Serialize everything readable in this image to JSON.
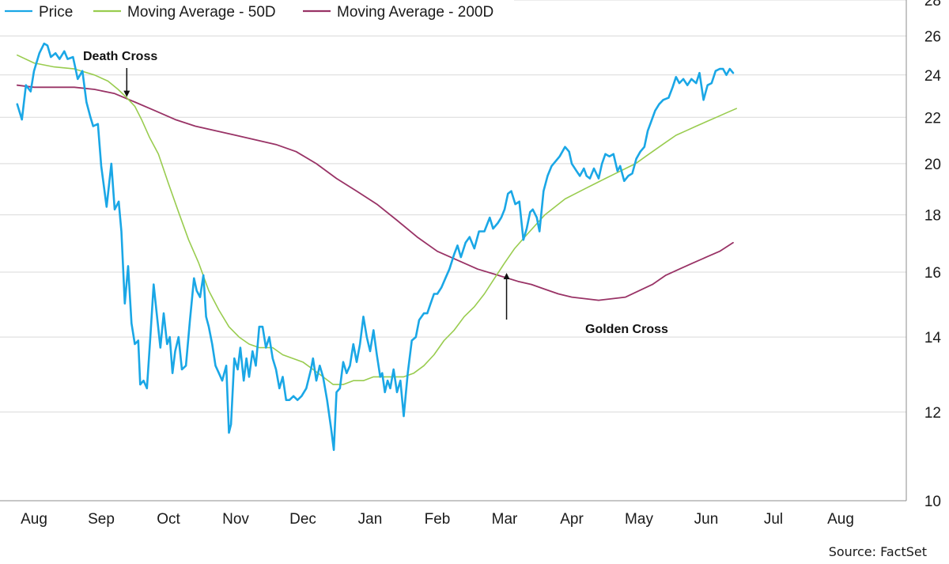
{
  "chart_data": {
    "type": "line",
    "title": "",
    "xlabel": "",
    "ylabel": "",
    "yscale": "log",
    "ylim": [
      10,
      28
    ],
    "yticks": [
      10,
      12,
      14,
      16,
      18,
      20,
      22,
      24,
      26,
      28
    ],
    "grid": "horizontal",
    "legend_position": "top-left",
    "colors": {
      "Price": "#1aa7e6",
      "Moving Average - 50D": "#99cc4f",
      "Moving Average - 200D": "#993366"
    },
    "month_labels": [
      "Aug",
      "Sep",
      "Oct",
      "Nov",
      "Dec",
      "Jan",
      "Feb",
      "Mar",
      "Apr",
      "May",
      "Jun",
      "Jul",
      "Aug"
    ],
    "x_unit": "months from the first tick label (0 = first Aug)",
    "series": [
      {
        "name": "Price",
        "color": "#1aa7e6",
        "points": [
          [
            -0.25,
            22.6
          ],
          [
            -0.18,
            21.9
          ],
          [
            -0.12,
            23.5
          ],
          [
            -0.05,
            23.2
          ],
          [
            0.0,
            24.2
          ],
          [
            0.08,
            25.1
          ],
          [
            0.15,
            25.6
          ],
          [
            0.2,
            25.5
          ],
          [
            0.25,
            24.9
          ],
          [
            0.32,
            25.1
          ],
          [
            0.38,
            24.8
          ],
          [
            0.45,
            25.2
          ],
          [
            0.5,
            24.8
          ],
          [
            0.58,
            24.9
          ],
          [
            0.65,
            23.8
          ],
          [
            0.72,
            24.2
          ],
          [
            0.78,
            22.7
          ],
          [
            0.84,
            22.0
          ],
          [
            0.88,
            21.6
          ],
          [
            0.95,
            21.7
          ],
          [
            1.0,
            19.9
          ],
          [
            1.08,
            18.3
          ],
          [
            1.15,
            20.0
          ],
          [
            1.2,
            18.2
          ],
          [
            1.26,
            18.5
          ],
          [
            1.3,
            17.4
          ],
          [
            1.35,
            15.0
          ],
          [
            1.4,
            16.2
          ],
          [
            1.45,
            14.4
          ],
          [
            1.5,
            13.8
          ],
          [
            1.55,
            13.9
          ],
          [
            1.58,
            12.7
          ],
          [
            1.63,
            12.8
          ],
          [
            1.68,
            12.6
          ],
          [
            1.73,
            14.0
          ],
          [
            1.78,
            15.6
          ],
          [
            1.82,
            14.8
          ],
          [
            1.88,
            13.7
          ],
          [
            1.93,
            14.7
          ],
          [
            1.98,
            13.8
          ],
          [
            2.02,
            14.0
          ],
          [
            2.06,
            13.0
          ],
          [
            2.1,
            13.6
          ],
          [
            2.15,
            14.0
          ],
          [
            2.2,
            13.1
          ],
          [
            2.26,
            13.2
          ],
          [
            2.32,
            14.5
          ],
          [
            2.38,
            15.8
          ],
          [
            2.42,
            15.4
          ],
          [
            2.47,
            15.2
          ],
          [
            2.52,
            15.9
          ],
          [
            2.56,
            14.6
          ],
          [
            2.6,
            14.3
          ],
          [
            2.65,
            13.8
          ],
          [
            2.7,
            13.2
          ],
          [
            2.75,
            13.0
          ],
          [
            2.8,
            12.8
          ],
          [
            2.86,
            13.2
          ],
          [
            2.9,
            11.5
          ],
          [
            2.93,
            11.7
          ],
          [
            2.98,
            13.4
          ],
          [
            3.03,
            13.1
          ],
          [
            3.07,
            13.7
          ],
          [
            3.12,
            12.8
          ],
          [
            3.16,
            13.4
          ],
          [
            3.2,
            12.9
          ],
          [
            3.25,
            13.6
          ],
          [
            3.3,
            13.2
          ],
          [
            3.35,
            14.3
          ],
          [
            3.4,
            14.3
          ],
          [
            3.45,
            13.7
          ],
          [
            3.5,
            14.0
          ],
          [
            3.55,
            13.4
          ],
          [
            3.6,
            13.1
          ],
          [
            3.65,
            12.6
          ],
          [
            3.7,
            12.9
          ],
          [
            3.75,
            12.3
          ],
          [
            3.8,
            12.3
          ],
          [
            3.86,
            12.4
          ],
          [
            3.92,
            12.3
          ],
          [
            3.98,
            12.4
          ],
          [
            4.05,
            12.6
          ],
          [
            4.12,
            13.1
          ],
          [
            4.15,
            13.4
          ],
          [
            4.2,
            12.8
          ],
          [
            4.25,
            13.2
          ],
          [
            4.3,
            12.9
          ],
          [
            4.36,
            12.3
          ],
          [
            4.42,
            11.6
          ],
          [
            4.46,
            11.1
          ],
          [
            4.5,
            12.5
          ],
          [
            4.55,
            12.6
          ],
          [
            4.6,
            13.3
          ],
          [
            4.65,
            13.0
          ],
          [
            4.7,
            13.2
          ],
          [
            4.75,
            13.8
          ],
          [
            4.8,
            13.3
          ],
          [
            4.85,
            13.8
          ],
          [
            4.9,
            14.6
          ],
          [
            4.95,
            14.0
          ],
          [
            5.0,
            13.6
          ],
          [
            5.05,
            14.2
          ],
          [
            5.1,
            13.5
          ],
          [
            5.15,
            12.9
          ],
          [
            5.18,
            13.0
          ],
          [
            5.22,
            12.5
          ],
          [
            5.26,
            12.8
          ],
          [
            5.3,
            12.6
          ],
          [
            5.35,
            13.1
          ],
          [
            5.4,
            12.5
          ],
          [
            5.45,
            12.8
          ],
          [
            5.5,
            11.9
          ],
          [
            5.56,
            13.0
          ],
          [
            5.62,
            13.9
          ],
          [
            5.68,
            14.0
          ],
          [
            5.73,
            14.5
          ],
          [
            5.8,
            14.7
          ],
          [
            5.85,
            14.7
          ],
          [
            5.9,
            15.0
          ],
          [
            5.95,
            15.3
          ],
          [
            6.0,
            15.3
          ],
          [
            6.06,
            15.5
          ],
          [
            6.12,
            15.8
          ],
          [
            6.18,
            16.1
          ],
          [
            6.25,
            16.6
          ],
          [
            6.3,
            16.9
          ],
          [
            6.35,
            16.5
          ],
          [
            6.42,
            17.0
          ],
          [
            6.48,
            17.2
          ],
          [
            6.55,
            16.8
          ],
          [
            6.62,
            17.4
          ],
          [
            6.7,
            17.4
          ],
          [
            6.78,
            17.9
          ],
          [
            6.83,
            17.5
          ],
          [
            6.9,
            17.7
          ],
          [
            6.95,
            17.9
          ],
          [
            7.0,
            18.2
          ],
          [
            7.05,
            18.8
          ],
          [
            7.1,
            18.9
          ],
          [
            7.16,
            18.4
          ],
          [
            7.22,
            18.5
          ],
          [
            7.28,
            17.1
          ],
          [
            7.33,
            17.5
          ],
          [
            7.38,
            18.1
          ],
          [
            7.42,
            18.2
          ],
          [
            7.48,
            17.9
          ],
          [
            7.52,
            17.4
          ],
          [
            7.58,
            18.9
          ],
          [
            7.64,
            19.5
          ],
          [
            7.7,
            19.9
          ],
          [
            7.76,
            20.1
          ],
          [
            7.82,
            20.3
          ],
          [
            7.9,
            20.7
          ],
          [
            7.96,
            20.5
          ],
          [
            8.0,
            20.0
          ],
          [
            8.07,
            19.7
          ],
          [
            8.12,
            19.5
          ],
          [
            8.18,
            19.8
          ],
          [
            8.22,
            19.5
          ],
          [
            8.27,
            19.4
          ],
          [
            8.33,
            19.8
          ],
          [
            8.4,
            19.4
          ],
          [
            8.45,
            20.0
          ],
          [
            8.5,
            20.4
          ],
          [
            8.56,
            20.3
          ],
          [
            8.62,
            20.4
          ],
          [
            8.68,
            19.7
          ],
          [
            8.72,
            19.9
          ],
          [
            8.78,
            19.3
          ],
          [
            8.84,
            19.5
          ],
          [
            8.9,
            19.6
          ],
          [
            8.96,
            20.2
          ],
          [
            9.02,
            20.5
          ],
          [
            9.08,
            20.7
          ],
          [
            9.13,
            21.4
          ],
          [
            9.18,
            21.8
          ],
          [
            9.24,
            22.3
          ],
          [
            9.3,
            22.6
          ],
          [
            9.36,
            22.8
          ],
          [
            9.44,
            22.9
          ],
          [
            9.5,
            23.4
          ],
          [
            9.55,
            23.9
          ],
          [
            9.6,
            23.6
          ],
          [
            9.66,
            23.8
          ],
          [
            9.72,
            23.5
          ],
          [
            9.78,
            23.8
          ],
          [
            9.85,
            23.6
          ],
          [
            9.9,
            24.1
          ],
          [
            9.96,
            22.8
          ],
          [
            10.02,
            23.5
          ],
          [
            10.08,
            23.6
          ],
          [
            10.14,
            24.2
          ],
          [
            10.2,
            24.3
          ],
          [
            10.25,
            24.3
          ],
          [
            10.3,
            24.0
          ],
          [
            10.35,
            24.3
          ],
          [
            10.4,
            24.1
          ]
        ]
      },
      {
        "name": "Moving Average - 50D",
        "color": "#99cc4f",
        "points": [
          [
            -0.25,
            25.0
          ],
          [
            0.0,
            24.6
          ],
          [
            0.3,
            24.4
          ],
          [
            0.6,
            24.3
          ],
          [
            0.9,
            24.0
          ],
          [
            1.1,
            23.7
          ],
          [
            1.25,
            23.3
          ],
          [
            1.38,
            22.9
          ],
          [
            1.5,
            22.5
          ],
          [
            1.6,
            21.9
          ],
          [
            1.72,
            21.1
          ],
          [
            1.85,
            20.4
          ],
          [
            2.0,
            19.2
          ],
          [
            2.15,
            18.1
          ],
          [
            2.3,
            17.1
          ],
          [
            2.45,
            16.3
          ],
          [
            2.6,
            15.4
          ],
          [
            2.75,
            14.8
          ],
          [
            2.9,
            14.3
          ],
          [
            3.05,
            14.0
          ],
          [
            3.2,
            13.8
          ],
          [
            3.35,
            13.7
          ],
          [
            3.55,
            13.7
          ],
          [
            3.7,
            13.5
          ],
          [
            3.85,
            13.4
          ],
          [
            4.0,
            13.3
          ],
          [
            4.15,
            13.1
          ],
          [
            4.3,
            12.9
          ],
          [
            4.45,
            12.7
          ],
          [
            4.6,
            12.7
          ],
          [
            4.75,
            12.8
          ],
          [
            4.9,
            12.8
          ],
          [
            5.05,
            12.9
          ],
          [
            5.2,
            12.9
          ],
          [
            5.35,
            12.9
          ],
          [
            5.5,
            12.9
          ],
          [
            5.65,
            13.0
          ],
          [
            5.8,
            13.2
          ],
          [
            5.95,
            13.5
          ],
          [
            6.1,
            13.9
          ],
          [
            6.25,
            14.2
          ],
          [
            6.4,
            14.6
          ],
          [
            6.55,
            14.9
          ],
          [
            6.7,
            15.3
          ],
          [
            6.85,
            15.8
          ],
          [
            7.0,
            16.3
          ],
          [
            7.15,
            16.8
          ],
          [
            7.3,
            17.2
          ],
          [
            7.45,
            17.6
          ],
          [
            7.6,
            18.0
          ],
          [
            7.75,
            18.3
          ],
          [
            7.9,
            18.6
          ],
          [
            8.05,
            18.8
          ],
          [
            8.2,
            19.0
          ],
          [
            8.35,
            19.2
          ],
          [
            8.5,
            19.4
          ],
          [
            8.65,
            19.6
          ],
          [
            8.8,
            19.8
          ],
          [
            8.95,
            20.0
          ],
          [
            9.1,
            20.3
          ],
          [
            9.25,
            20.6
          ],
          [
            9.4,
            20.9
          ],
          [
            9.55,
            21.2
          ],
          [
            9.7,
            21.4
          ],
          [
            9.85,
            21.6
          ],
          [
            10.0,
            21.8
          ],
          [
            10.15,
            22.0
          ],
          [
            10.3,
            22.2
          ],
          [
            10.45,
            22.4
          ]
        ]
      },
      {
        "name": "Moving Average - 200D",
        "color": "#993366",
        "points": [
          [
            -0.25,
            23.5
          ],
          [
            0.0,
            23.4
          ],
          [
            0.3,
            23.4
          ],
          [
            0.6,
            23.4
          ],
          [
            0.9,
            23.3
          ],
          [
            1.2,
            23.1
          ],
          [
            1.5,
            22.7
          ],
          [
            1.8,
            22.3
          ],
          [
            2.1,
            21.9
          ],
          [
            2.4,
            21.6
          ],
          [
            2.7,
            21.4
          ],
          [
            3.0,
            21.2
          ],
          [
            3.3,
            21.0
          ],
          [
            3.6,
            20.8
          ],
          [
            3.9,
            20.5
          ],
          [
            4.2,
            20.0
          ],
          [
            4.5,
            19.4
          ],
          [
            4.8,
            18.9
          ],
          [
            5.1,
            18.4
          ],
          [
            5.4,
            17.8
          ],
          [
            5.7,
            17.2
          ],
          [
            6.0,
            16.7
          ],
          [
            6.3,
            16.4
          ],
          [
            6.6,
            16.1
          ],
          [
            6.9,
            15.9
          ],
          [
            7.2,
            15.7
          ],
          [
            7.4,
            15.6
          ],
          [
            7.6,
            15.45
          ],
          [
            7.8,
            15.3
          ],
          [
            8.0,
            15.2
          ],
          [
            8.2,
            15.15
          ],
          [
            8.4,
            15.1
          ],
          [
            8.6,
            15.15
          ],
          [
            8.8,
            15.2
          ],
          [
            9.0,
            15.4
          ],
          [
            9.2,
            15.6
          ],
          [
            9.4,
            15.9
          ],
          [
            9.6,
            16.1
          ],
          [
            9.8,
            16.3
          ],
          [
            10.0,
            16.5
          ],
          [
            10.2,
            16.7
          ],
          [
            10.4,
            17.0
          ]
        ]
      }
    ],
    "annotations": [
      {
        "text": "Death Cross",
        "x": 1.38,
        "y": 22.9
      },
      {
        "text": "Golden Cross",
        "x": 7.03,
        "y": 16.0
      }
    ],
    "source": "Source: FactSet"
  }
}
